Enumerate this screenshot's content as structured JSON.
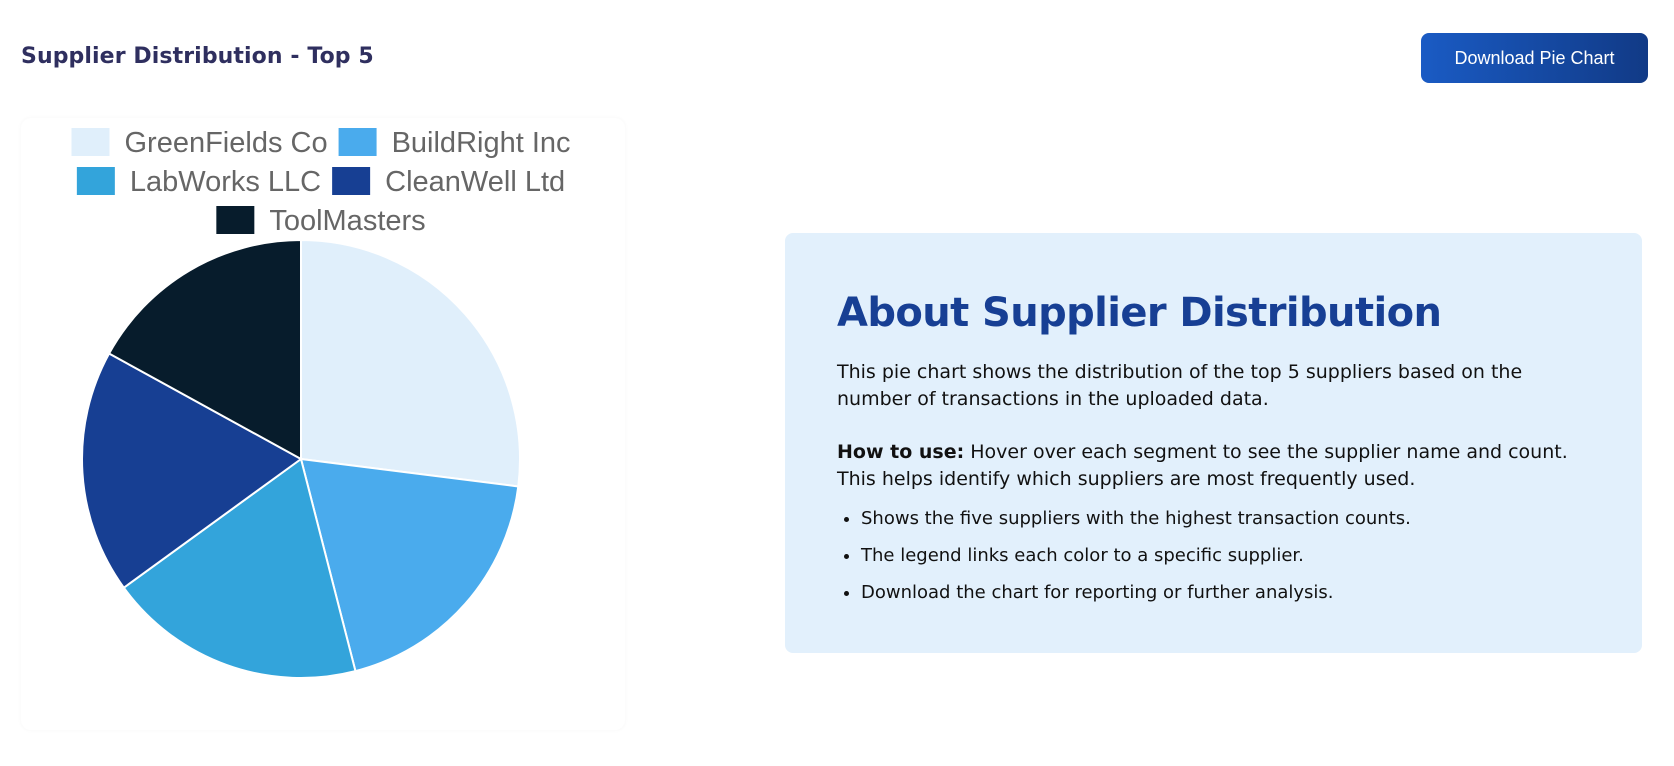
{
  "header": {
    "title": "Supplier Distribution - Top 5",
    "download_label": "Download Pie Chart"
  },
  "chart_data": {
    "type": "pie",
    "title": "",
    "labels": [
      "GreenFields Co",
      "BuildRight Inc",
      "LabWorks LLC",
      "CleanWell Ltd",
      "ToolMasters"
    ],
    "values": [
      27,
      19,
      19,
      18,
      17
    ],
    "colors": [
      "#e0effb",
      "#4aabed",
      "#33a4db",
      "#173f93",
      "#071c2c"
    ],
    "legend_position": "top",
    "slice_border_color": "#ffffff"
  },
  "info": {
    "title": "About Supplier Distribution",
    "description": "This pie chart shows the distribution of the top 5 suppliers based on the number of transactions in the uploaded data.",
    "howto_label": "How to use:",
    "howto_text": " Hover over each segment to see the supplier name and count. This helps identify which suppliers are most frequently used.",
    "bullets": [
      "Shows the five suppliers with the highest transaction counts.",
      "The legend links each color to a specific supplier.",
      "Download the chart for reporting or further analysis."
    ]
  }
}
